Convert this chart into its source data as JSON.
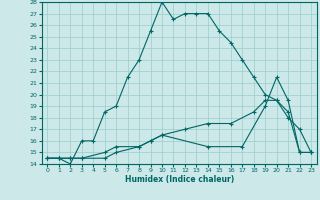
{
  "xlabel": "Humidex (Indice chaleur)",
  "bg_color": "#cce8e8",
  "grid_color": "#99cccc",
  "line_color": "#006666",
  "xlim": [
    -0.5,
    23.5
  ],
  "ylim": [
    14,
    28
  ],
  "xticks": [
    0,
    1,
    2,
    3,
    4,
    5,
    6,
    7,
    8,
    9,
    10,
    11,
    12,
    13,
    14,
    15,
    16,
    17,
    18,
    19,
    20,
    21,
    22,
    23
  ],
  "yticks": [
    14,
    15,
    16,
    17,
    18,
    19,
    20,
    21,
    22,
    23,
    24,
    25,
    26,
    27,
    28
  ],
  "series1_x": [
    0,
    1,
    2,
    3,
    4,
    5,
    6,
    7,
    8,
    9,
    10,
    11,
    12,
    13,
    14,
    15,
    16,
    17,
    18,
    19,
    20,
    21,
    22,
    23
  ],
  "series1_y": [
    14.5,
    14.5,
    14.0,
    16.0,
    16.0,
    18.5,
    19.0,
    21.5,
    23.0,
    25.5,
    28.0,
    26.5,
    27.0,
    27.0,
    27.0,
    25.5,
    24.5,
    23.0,
    21.5,
    20.0,
    19.5,
    18.0,
    17.0,
    15.0
  ],
  "series2_x": [
    0,
    1,
    2,
    3,
    5,
    6,
    8,
    9,
    10,
    14,
    17,
    19,
    20,
    21,
    22,
    23
  ],
  "series2_y": [
    14.5,
    14.5,
    14.5,
    14.5,
    15.0,
    15.5,
    15.5,
    16.0,
    16.5,
    15.5,
    15.5,
    19.0,
    21.5,
    19.5,
    15.0,
    15.0
  ],
  "series3_x": [
    0,
    1,
    2,
    3,
    5,
    6,
    8,
    9,
    10,
    12,
    14,
    16,
    18,
    19,
    20,
    21,
    22,
    23
  ],
  "series3_y": [
    14.5,
    14.5,
    14.5,
    14.5,
    14.5,
    15.0,
    15.5,
    16.0,
    16.5,
    17.0,
    17.5,
    17.5,
    18.5,
    19.5,
    19.5,
    18.5,
    15.0,
    15.0
  ]
}
